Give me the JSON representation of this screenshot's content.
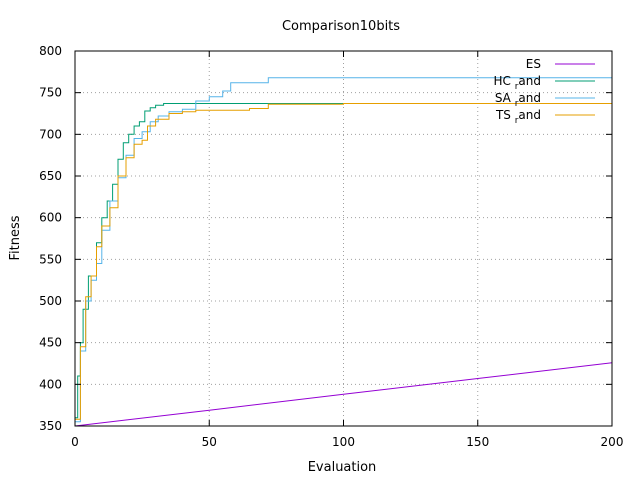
{
  "chart_data": {
    "type": "line",
    "title": "Comparison10bits",
    "xlabel": "Evaluation",
    "ylabel": "Fitness",
    "xlim": [
      0,
      200
    ],
    "ylim": [
      350,
      800
    ],
    "xticks": [
      0,
      50,
      100,
      150,
      200
    ],
    "yticks": [
      350,
      400,
      450,
      500,
      550,
      600,
      650,
      700,
      750,
      800
    ],
    "grid": true,
    "legend": "top-right",
    "series": [
      {
        "name": "ES",
        "color": "#9400d3",
        "points": [
          [
            0,
            350
          ],
          [
            50,
            369
          ],
          [
            100,
            388
          ],
          [
            150,
            407
          ],
          [
            200,
            426
          ]
        ]
      },
      {
        "name": "HC_rand",
        "legend_main": "HC",
        "legend_sub": "r",
        "legend_tail": "and",
        "color": "#009e73",
        "points": [
          [
            0,
            360
          ],
          [
            1,
            410
          ],
          [
            2,
            450
          ],
          [
            3,
            490
          ],
          [
            5,
            530
          ],
          [
            8,
            570
          ],
          [
            10,
            600
          ],
          [
            12,
            620
          ],
          [
            14,
            640
          ],
          [
            16,
            670
          ],
          [
            18,
            690
          ],
          [
            20,
            700
          ],
          [
            22,
            710
          ],
          [
            24,
            715
          ],
          [
            26,
            728
          ],
          [
            28,
            732
          ],
          [
            30,
            735
          ],
          [
            33,
            737
          ],
          [
            40,
            737
          ],
          [
            60,
            737
          ],
          [
            100,
            737
          ],
          [
            141,
            737
          ]
        ]
      },
      {
        "name": "SA_rand",
        "legend_main": "SA",
        "legend_sub": "r",
        "legend_tail": "and",
        "color": "#56b4e9",
        "points": [
          [
            0,
            355
          ],
          [
            2,
            440
          ],
          [
            4,
            500
          ],
          [
            6,
            525
          ],
          [
            8,
            545
          ],
          [
            10,
            585
          ],
          [
            13,
            620
          ],
          [
            16,
            648
          ],
          [
            19,
            675
          ],
          [
            22,
            695
          ],
          [
            25,
            703
          ],
          [
            28,
            715
          ],
          [
            31,
            722
          ],
          [
            35,
            727
          ],
          [
            40,
            730
          ],
          [
            45,
            740
          ],
          [
            50,
            745
          ],
          [
            55,
            752
          ],
          [
            58,
            762
          ],
          [
            65,
            762
          ],
          [
            72,
            768
          ],
          [
            100,
            768
          ],
          [
            150,
            768
          ],
          [
            200,
            768
          ]
        ]
      },
      {
        "name": "TS_rand",
        "legend_main": "TS",
        "legend_sub": "r",
        "legend_tail": "and",
        "color": "#e69f00",
        "points": [
          [
            0,
            358
          ],
          [
            2,
            445
          ],
          [
            4,
            505
          ],
          [
            6,
            530
          ],
          [
            8,
            565
          ],
          [
            10,
            590
          ],
          [
            13,
            612
          ],
          [
            16,
            650
          ],
          [
            19,
            672
          ],
          [
            22,
            688
          ],
          [
            25,
            693
          ],
          [
            27,
            710
          ],
          [
            30,
            718
          ],
          [
            35,
            725
          ],
          [
            40,
            727
          ],
          [
            45,
            729
          ],
          [
            55,
            729
          ],
          [
            65,
            731
          ],
          [
            72,
            736
          ],
          [
            100,
            737
          ],
          [
            150,
            737
          ],
          [
            200,
            737
          ]
        ]
      }
    ]
  }
}
